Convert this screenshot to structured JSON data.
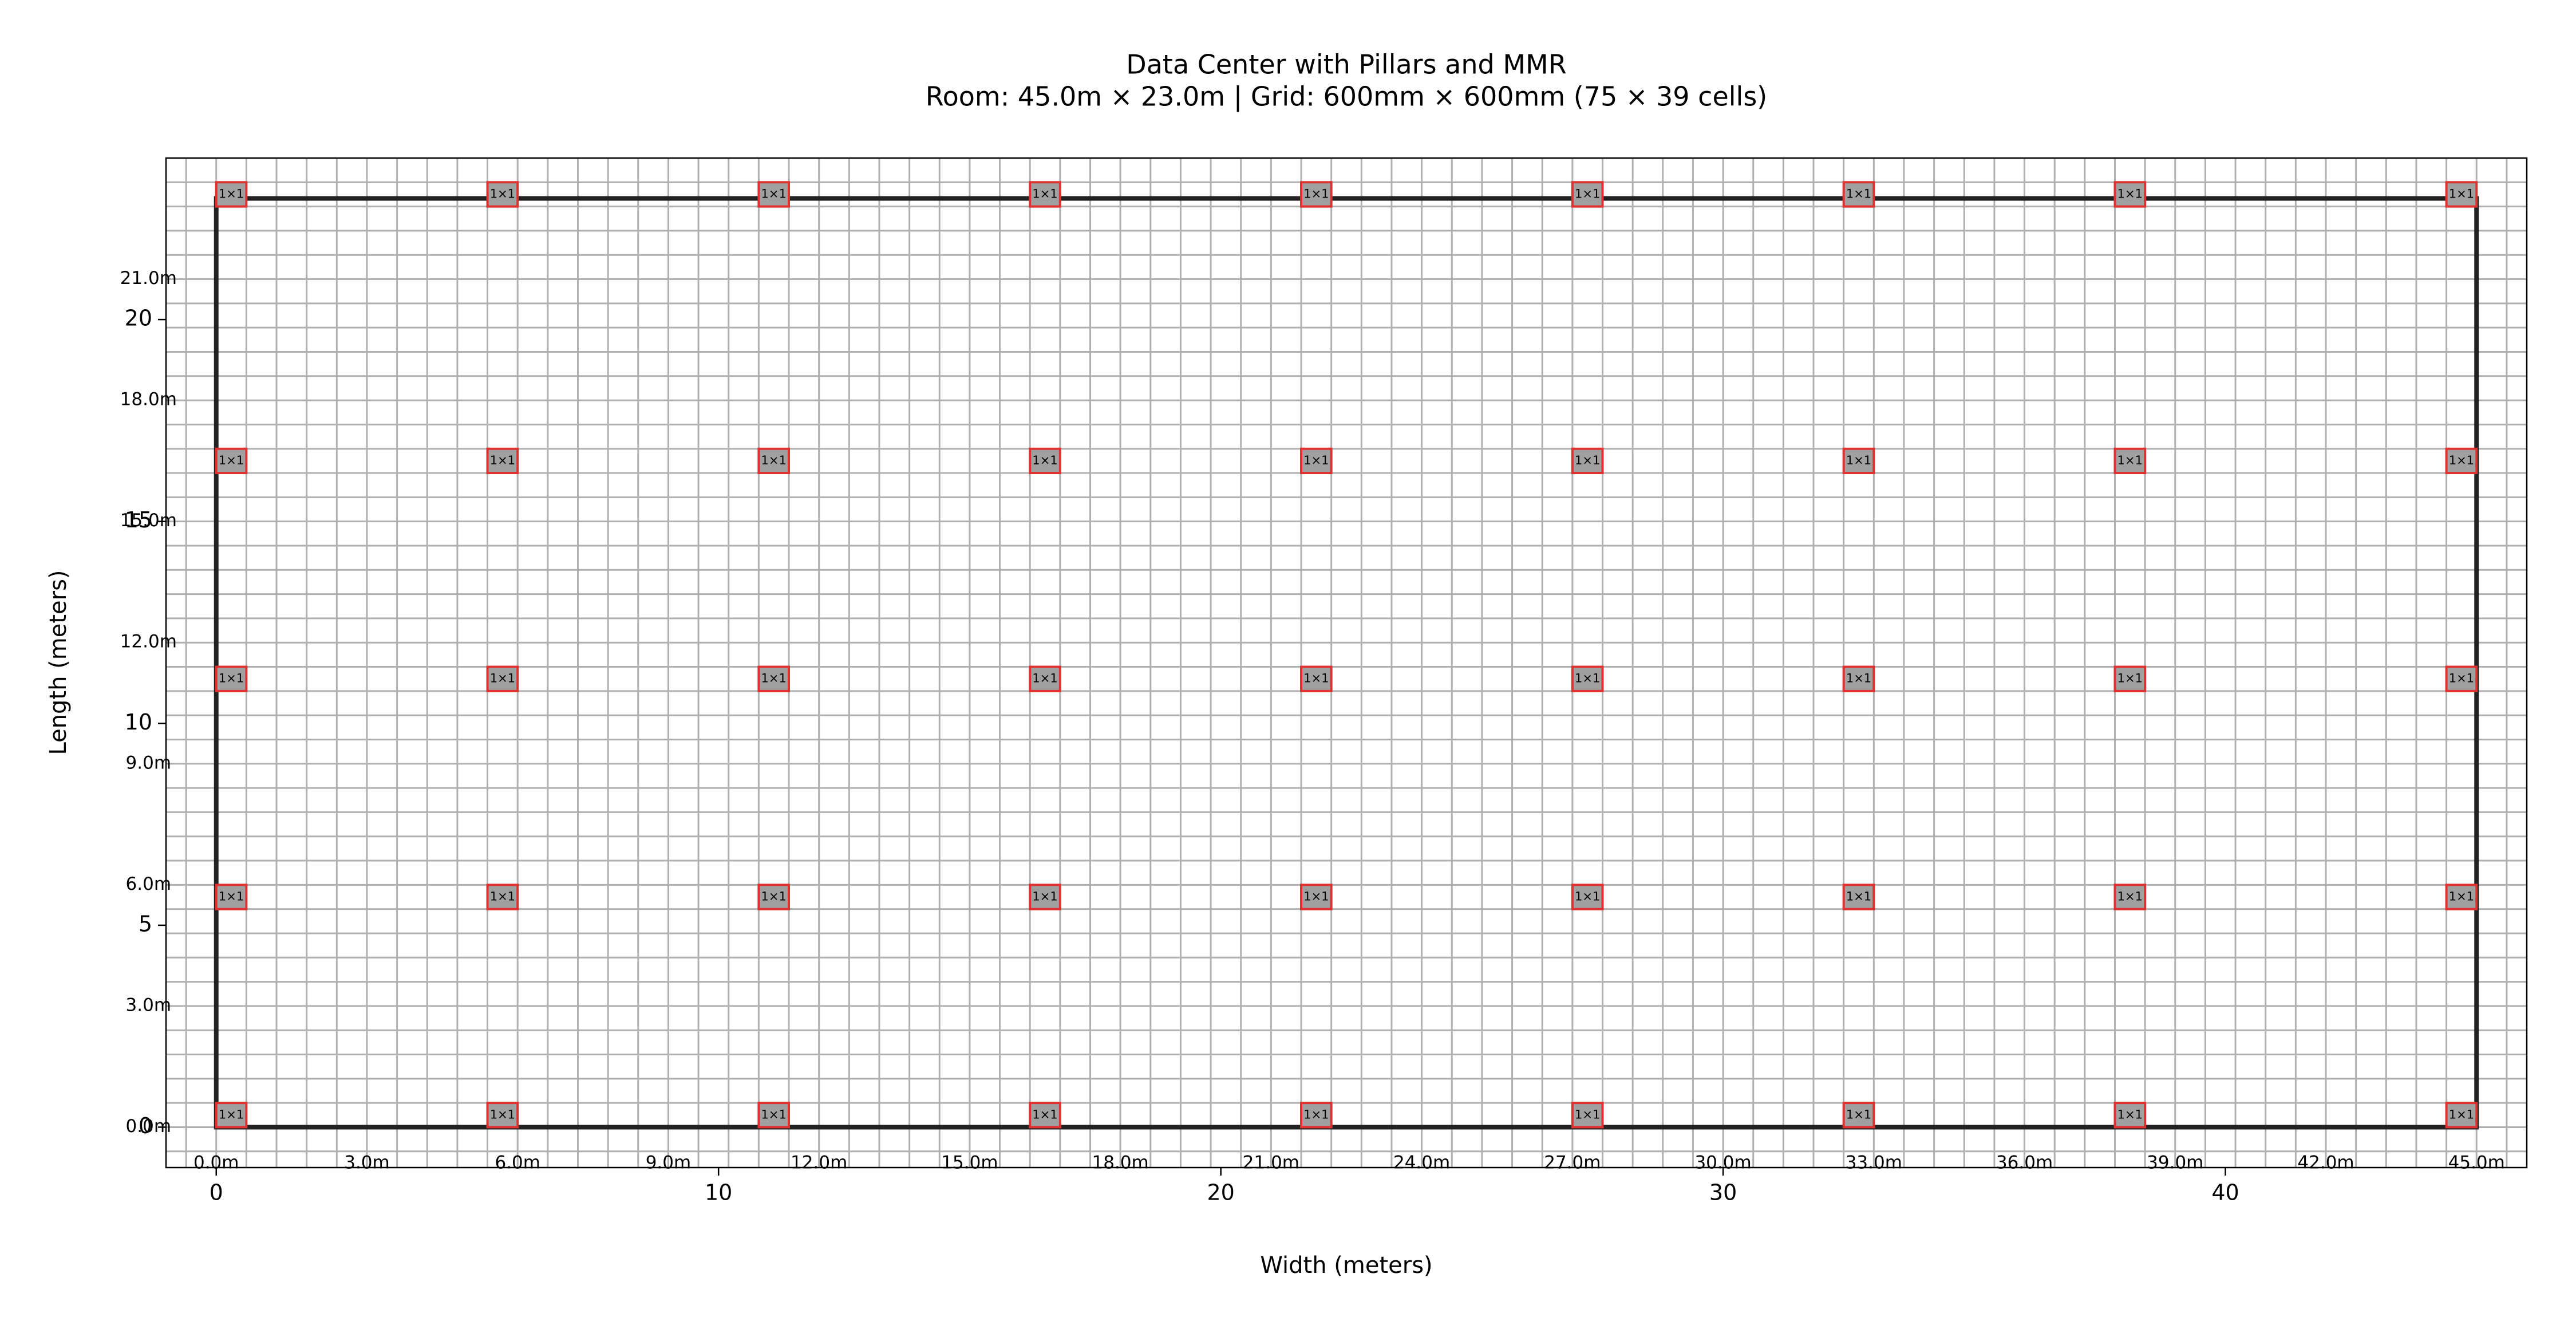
{
  "chart_data": {
    "type": "floorplan",
    "title": "Data Center with Pillars and MMR",
    "subtitle": "Room: 45.0m × 23.0m | Grid: 600mm × 600mm (75 × 39 cells)",
    "xlabel": "Width (meters)",
    "ylabel": "Length (meters)",
    "xlim": [
      -1,
      46
    ],
    "ylim": [
      -1,
      24
    ],
    "xticks": [
      0,
      10,
      20,
      30,
      40
    ],
    "yticks": [
      0,
      5,
      10,
      15,
      20
    ],
    "grid": true,
    "cell_size": 0.6,
    "room_width": 45,
    "room_length": 23,
    "room_color": "#222222",
    "x_annotations": [
      {
        "value": 0,
        "label": "0.0m"
      },
      {
        "value": 3,
        "label": "3.0m"
      },
      {
        "value": 6,
        "label": "6.0m"
      },
      {
        "value": 9,
        "label": "9.0m"
      },
      {
        "value": 12,
        "label": "12.0m"
      },
      {
        "value": 15,
        "label": "15.0m"
      },
      {
        "value": 18,
        "label": "18.0m"
      },
      {
        "value": 21,
        "label": "21.0m"
      },
      {
        "value": 24,
        "label": "24.0m"
      },
      {
        "value": 27,
        "label": "27.0m"
      },
      {
        "value": 30,
        "label": "30.0m"
      },
      {
        "value": 33,
        "label": "33.0m"
      },
      {
        "value": 36,
        "label": "36.0m"
      },
      {
        "value": 39,
        "label": "39.0m"
      },
      {
        "value": 42,
        "label": "42.0m"
      },
      {
        "value": 45,
        "label": "45.0m"
      }
    ],
    "y_annotations": [
      {
        "value": 0,
        "label": "0.0m"
      },
      {
        "value": 3,
        "label": "3.0m"
      },
      {
        "value": 6,
        "label": "6.0m"
      },
      {
        "value": 9,
        "label": "9.0m"
      },
      {
        "value": 12,
        "label": "12.0m"
      },
      {
        "value": 15,
        "label": "15.0m"
      },
      {
        "value": 18,
        "label": "18.0m"
      },
      {
        "value": 21,
        "label": "21.0m"
      }
    ],
    "pillar_x": [
      0,
      5.4,
      10.8,
      16.2,
      21.6,
      27,
      32.4,
      37.8,
      44.4
    ],
    "pillar_y": [
      0,
      5.4,
      10.8,
      16.2,
      22.8
    ],
    "pillar_size": 0.6,
    "pillar_label": "1×1",
    "pillar_color": "#a0a0a0",
    "pillar_edge_color": "#e03030"
  }
}
